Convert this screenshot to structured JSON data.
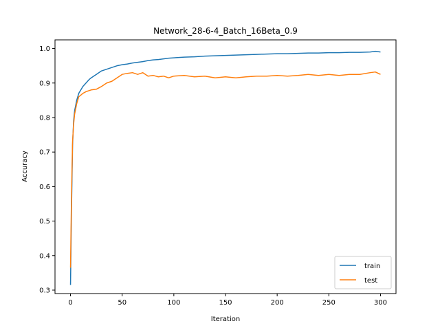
{
  "chart_data": {
    "type": "line",
    "title": "Network_28-6-4_Batch_16Beta_0.9",
    "xlabel": "Iteration",
    "ylabel": "Accuracy",
    "xlim": [
      -15,
      315
    ],
    "ylim": [
      0.29,
      1.025
    ],
    "xticks": [
      0,
      50,
      100,
      150,
      200,
      250,
      300
    ],
    "yticks": [
      0.3,
      0.4,
      0.5,
      0.6,
      0.7,
      0.8,
      0.9,
      1.0
    ],
    "grid": false,
    "legend": "lower-right",
    "x": [
      0,
      1,
      2,
      3,
      4,
      6,
      8,
      10,
      12,
      15,
      18,
      20,
      25,
      30,
      35,
      40,
      45,
      50,
      55,
      60,
      65,
      70,
      75,
      80,
      85,
      90,
      95,
      100,
      110,
      120,
      130,
      140,
      150,
      160,
      170,
      180,
      190,
      200,
      210,
      220,
      230,
      240,
      250,
      260,
      270,
      280,
      290,
      295,
      300
    ],
    "series": [
      {
        "name": "train",
        "color": "#1f77b4",
        "values": [
          0.315,
          0.54,
          0.72,
          0.79,
          0.82,
          0.85,
          0.87,
          0.88,
          0.89,
          0.9,
          0.91,
          0.915,
          0.925,
          0.935,
          0.94,
          0.945,
          0.95,
          0.953,
          0.955,
          0.958,
          0.96,
          0.962,
          0.965,
          0.967,
          0.968,
          0.97,
          0.972,
          0.973,
          0.975,
          0.976,
          0.978,
          0.979,
          0.98,
          0.981,
          0.982,
          0.983,
          0.984,
          0.985,
          0.985,
          0.986,
          0.987,
          0.987,
          0.988,
          0.988,
          0.989,
          0.989,
          0.99,
          0.992,
          0.99
        ]
      },
      {
        "name": "test",
        "color": "#ff7f0e",
        "values": [
          0.365,
          0.58,
          0.73,
          0.78,
          0.81,
          0.84,
          0.86,
          0.865,
          0.87,
          0.875,
          0.878,
          0.88,
          0.882,
          0.89,
          0.9,
          0.905,
          0.915,
          0.925,
          0.928,
          0.93,
          0.925,
          0.93,
          0.92,
          0.922,
          0.918,
          0.92,
          0.915,
          0.92,
          0.922,
          0.918,
          0.92,
          0.915,
          0.918,
          0.915,
          0.918,
          0.92,
          0.92,
          0.922,
          0.92,
          0.922,
          0.925,
          0.922,
          0.925,
          0.922,
          0.925,
          0.925,
          0.93,
          0.932,
          0.925
        ]
      }
    ]
  }
}
